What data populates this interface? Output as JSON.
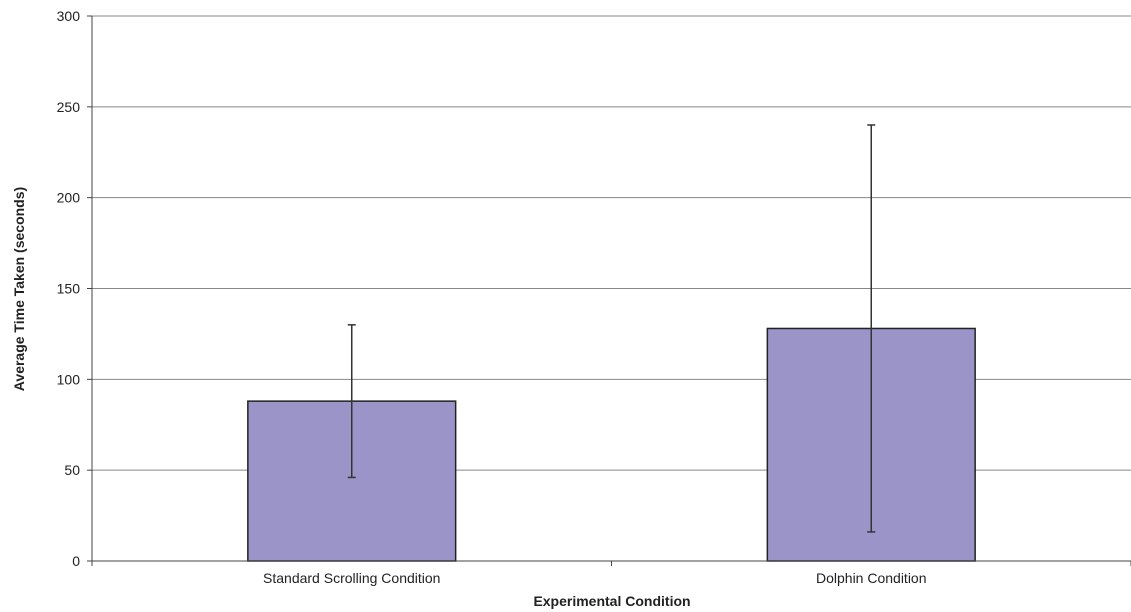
{
  "chart_data": {
    "type": "bar",
    "title": "",
    "xlabel": "Experimental Condition",
    "ylabel": "Average Time Taken (seconds)",
    "ylim": [
      0,
      300
    ],
    "yticks": [
      0,
      50,
      100,
      150,
      200,
      250,
      300
    ],
    "categories": [
      "Standard Scrolling Condition",
      "Dolphin Condition"
    ],
    "values": [
      88,
      128
    ],
    "error_bars": [
      {
        "low": 46,
        "high": 130
      },
      {
        "low": 16,
        "high": 240
      }
    ],
    "grid": "horizontal",
    "legend": "none",
    "colors": {
      "bar_fill": "#9b94c8",
      "bar_stroke": "#222222",
      "grid": "#888888",
      "axis": "#444444",
      "error_bar": "#333333"
    }
  }
}
